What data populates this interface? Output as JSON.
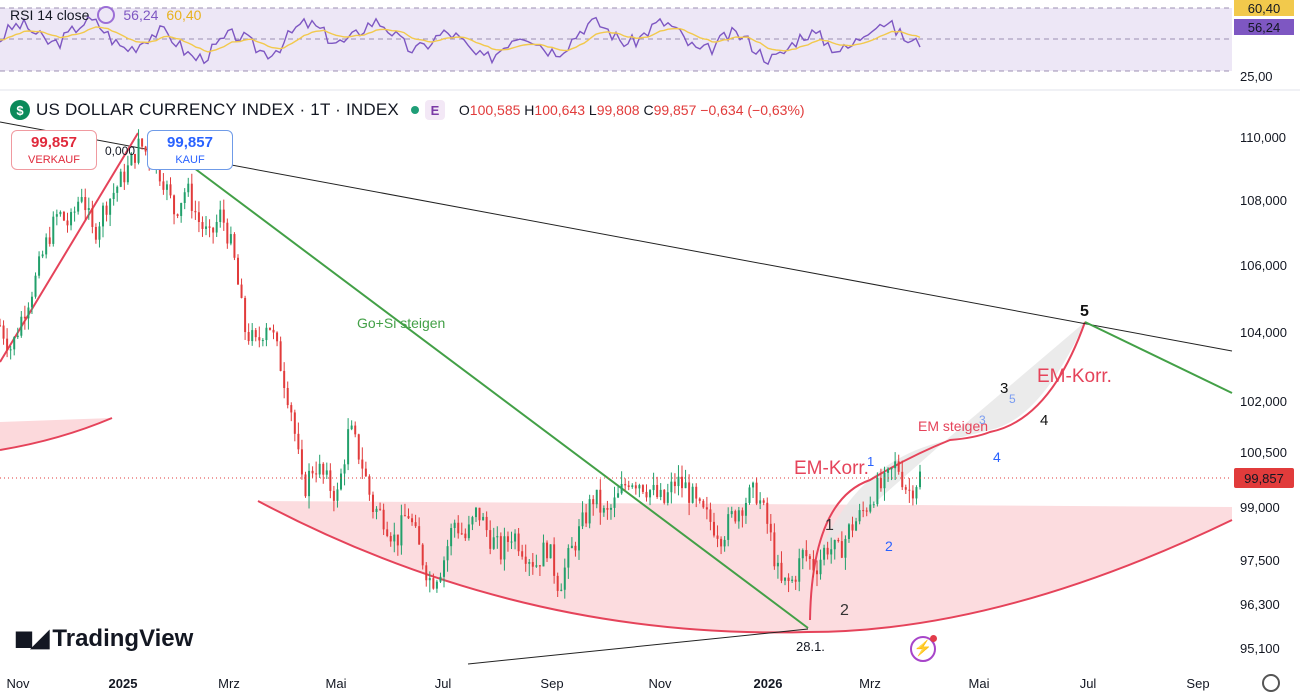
{
  "rsi_panel": {
    "label": "RSI 14 close",
    "rsi_value": "56,24",
    "ma_value": "60,40",
    "price_labels": [
      "60,40",
      "56,24",
      "25,00"
    ]
  },
  "symbol": {
    "icon_glyph": "$",
    "title": "US DOLLAR CURRENCY INDEX · 1T · INDEX",
    "badge": "E",
    "o_label": "O",
    "o_value": "100,585",
    "h_label": "H",
    "h_value": "100,643",
    "l_label": "L",
    "l_value": "99,808",
    "c_label": "C",
    "c_value": "99,857",
    "change": "−0,634 (−0,63%)"
  },
  "trade": {
    "sell_price": "99,857",
    "sell_label": "VERKAUF",
    "buy_price": "99,857",
    "buy_label": "KAUF"
  },
  "current_price_tag": "99,857",
  "branding": "TradingView",
  "colors": {
    "down": "#e13b3b",
    "up": "#22a06b",
    "green_line": "#43a047",
    "red_line": "#e5435a",
    "rsi_line": "#7e57c2",
    "rsi_ma": "#f2c94c",
    "blue": "#2962ff"
  },
  "chart_data": {
    "type": "candlestick",
    "y_ticks": [
      "110,000",
      "108,000",
      "106,000",
      "104,000",
      "102,000",
      "100,500",
      "99,000",
      "97,500",
      "96,300",
      "95,100"
    ],
    "x_ticks": [
      "Nov",
      "2025",
      "Mrz",
      "Mai",
      "Jul",
      "Sep",
      "Nov",
      "2026",
      "Mrz",
      "Mai",
      "Jul",
      "Sep"
    ],
    "ylim": [
      95.1,
      110.0
    ],
    "y_scale": "logarithmic",
    "annotations": {
      "fib_zero": "0,000",
      "green_label": "Go+Si steigen",
      "em_korr_1": "EM-Korr.",
      "em_korr_2": "EM-Korr.",
      "em_steigen": "EM steigen",
      "date_mark": "28.1.",
      "wave_black": [
        "1",
        "2",
        "3",
        "4",
        "5"
      ],
      "wave_blue": [
        "1",
        "2",
        "3",
        "4",
        "5"
      ]
    },
    "series": [
      {
        "values": [
          104.2,
          103.5,
          104.6,
          105.5,
          106.7,
          107.6,
          107.2,
          108.3,
          106.9,
          107.8,
          108.4,
          109.0,
          109.8,
          109.3,
          108.7,
          107.6,
          108.4,
          107.4,
          106.8,
          107.6,
          106.4,
          104.1,
          103.6,
          104.4,
          103.2,
          101.8,
          99.4,
          100.2,
          99.7,
          99.3,
          101.2,
          100.3,
          99.0,
          98.7,
          98.0,
          98.9,
          97.8,
          96.9,
          97.4,
          98.6,
          98.1,
          98.9,
          98.2,
          97.7,
          98.3,
          97.8,
          97.4,
          97.9,
          96.8,
          97.7,
          98.5,
          99.3,
          98.7,
          99.2,
          99.8,
          99.7,
          99.4,
          99.1,
          99.7,
          99.5,
          98.9,
          98.6,
          98.2,
          98.8,
          99.2,
          99.4,
          98.4,
          96.8,
          96.9,
          97.7,
          97.3,
          97.9,
          97.7,
          98.4,
          98.8,
          99.4,
          99.6,
          100.2,
          99.4,
          99.857
        ],
        "ohlc": [
          {
            "date": "2024-12-05",
            "open": 105.8,
            "high": 106.2,
            "low": 105.4,
            "close": 106.0
          },
          {
            "date": "2024-12-31",
            "open": 107.9,
            "high": 108.5,
            "low": 107.6,
            "close": 108.4
          },
          {
            "date": "2025-01-13",
            "open": 109.6,
            "high": 110.0,
            "low": 109.3,
            "close": 109.9
          },
          {
            "date": "2025-03-06",
            "open": 104.3,
            "high": 104.4,
            "low": 103.8,
            "close": 103.9
          },
          {
            "date": "2025-04-21",
            "open": 99.2,
            "high": 99.4,
            "low": 98.0,
            "close": 98.3
          },
          {
            "date": "2025-07-01",
            "open": 96.9,
            "high": 97.0,
            "low": 96.4,
            "close": 96.6
          },
          {
            "date": "2025-11-04",
            "open": 100.1,
            "high": 100.3,
            "low": 99.8,
            "close": 100.2
          },
          {
            "date": "2026-01-28",
            "open": 96.6,
            "high": 96.8,
            "low": 95.6,
            "close": 95.9
          },
          {
            "date": "2026-03-23",
            "open": 100.585,
            "high": 100.643,
            "low": 99.808,
            "close": 99.857
          }
        ]
      }
    ]
  }
}
